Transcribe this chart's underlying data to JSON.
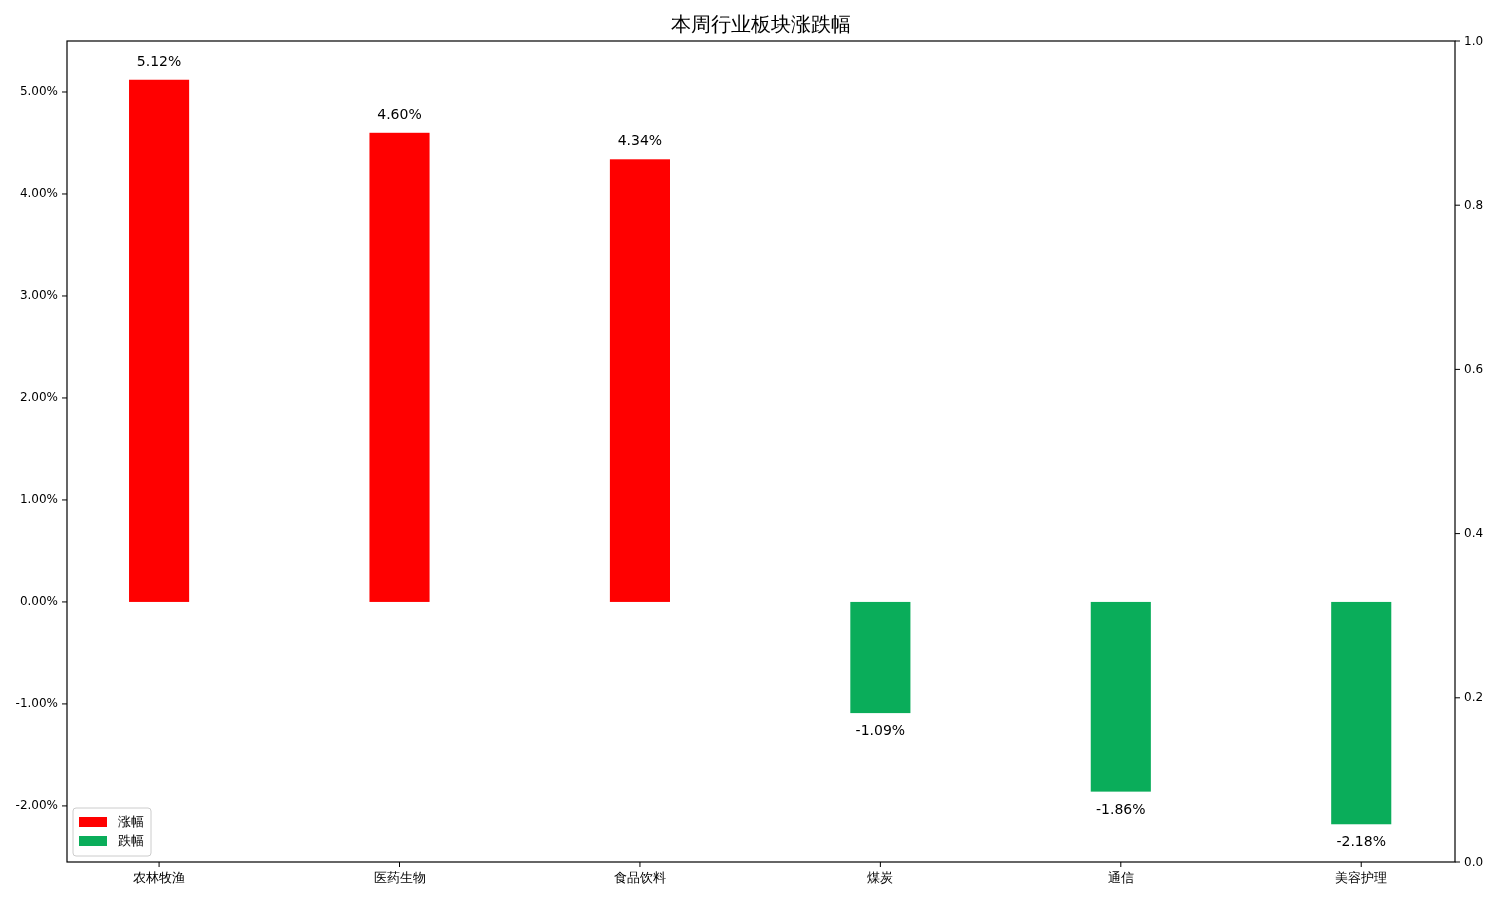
{
  "chart_data": {
    "type": "bar",
    "title": "本周行业板块涨跌幅",
    "categories": [
      "农林牧渔",
      "医药生物",
      "食品饮料",
      "煤炭",
      "通信",
      "美容护理"
    ],
    "series": [
      {
        "name": "涨幅",
        "color": "#ff0000",
        "values": [
          5.12,
          4.6,
          4.34,
          null,
          null,
          null
        ],
        "value_labels": [
          "5.12%",
          "4.60%",
          "4.34%",
          null,
          null,
          null
        ]
      },
      {
        "name": "跌幅",
        "color": "#0aad5a",
        "values": [
          null,
          null,
          null,
          -1.09,
          -1.86,
          -2.18
        ],
        "value_labels": [
          null,
          null,
          null,
          "-1.09%",
          "-1.86%",
          "-2.18%"
        ]
      }
    ],
    "ylim": [
      -2.55,
      5.5
    ],
    "yticks": [
      {
        "value": -2,
        "label": "-2.00%"
      },
      {
        "value": -1,
        "label": "-1.00%"
      },
      {
        "value": 0,
        "label": "0.00%"
      },
      {
        "value": 1,
        "label": "1.00%"
      },
      {
        "value": 2,
        "label": "2.00%"
      },
      {
        "value": 3,
        "label": "3.00%"
      },
      {
        "value": 4,
        "label": "4.00%"
      },
      {
        "value": 5,
        "label": "5.00%"
      }
    ],
    "y2lim": [
      0,
      1
    ],
    "y2ticks": [
      {
        "value": 0,
        "label": "0.0"
      },
      {
        "value": 0.2,
        "label": "0.2"
      },
      {
        "value": 0.4,
        "label": "0.4"
      },
      {
        "value": 0.6,
        "label": "0.6"
      },
      {
        "value": 0.8,
        "label": "0.8"
      },
      {
        "value": 1,
        "label": "1.0"
      }
    ],
    "legend": "bottom left"
  }
}
